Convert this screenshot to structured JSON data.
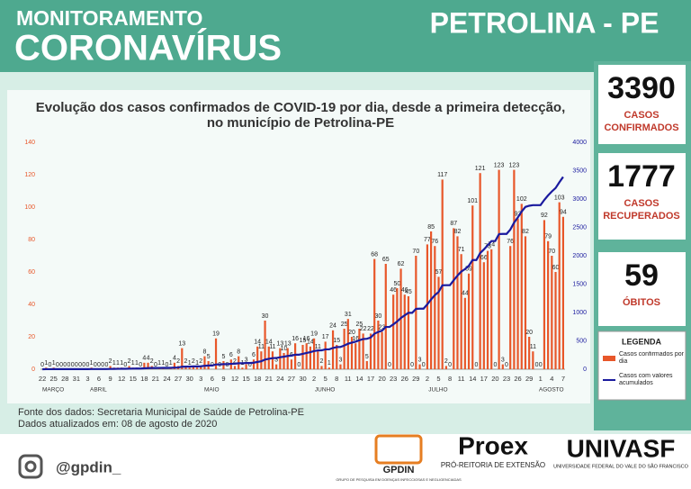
{
  "header": {
    "title_top": "MONITORAMENTO",
    "title_main": "CORONAVÍRUS",
    "location": "PETROLINA - PE"
  },
  "stats": [
    {
      "value": 3390,
      "label": [
        "CASOS",
        "CONFIRMADOS"
      ]
    },
    {
      "value": 1777,
      "label": [
        "CASOS",
        "RECUPERADOS"
      ]
    },
    {
      "value": 59,
      "label": [
        "ÓBITOS"
      ]
    }
  ],
  "chart_data": {
    "type": "bar",
    "title": [
      "Evolução dos casos confirmados de COVID-19 por dia, desde a primeira detecção,",
      "no município de Petrolina-PE"
    ],
    "categories": [
      "22",
      null,
      null,
      "25",
      null,
      null,
      "28",
      null,
      null,
      "31",
      null,
      null,
      "3",
      null,
      null,
      "6",
      null,
      null,
      "9",
      null,
      null,
      "12",
      null,
      null,
      "15",
      null,
      null,
      "18",
      null,
      null,
      "21",
      null,
      null,
      "24",
      null,
      null,
      "27",
      null,
      null,
      "30",
      null,
      null,
      "3",
      null,
      null,
      "6",
      null,
      null,
      "9",
      null,
      null,
      "12",
      null,
      null,
      "15",
      null,
      null,
      "18",
      null,
      null,
      "21",
      null,
      null,
      "24",
      null,
      null,
      "27",
      null,
      null,
      "30",
      null,
      null,
      "2",
      null,
      null,
      "5",
      null,
      null,
      "8",
      null,
      null,
      "11",
      null,
      null,
      "14",
      null,
      null,
      "17",
      null,
      null,
      "20",
      null,
      null,
      "23",
      null,
      null,
      "26",
      null,
      null,
      "29",
      null,
      null,
      "2",
      null,
      null,
      "5",
      null,
      null,
      "8",
      null,
      null,
      "11",
      null,
      null,
      "14",
      null,
      null,
      "17",
      null,
      null,
      "20",
      null,
      null,
      "23",
      null,
      null,
      "26",
      null,
      null,
      "29",
      null,
      null,
      "1",
      null,
      null,
      "4",
      null,
      null,
      "7"
    ],
    "month_labels": [
      "MARÇO",
      "ABRIL",
      "MAIO",
      "JUNHO",
      "JULHO",
      "AGOSTO"
    ],
    "series": [
      {
        "name": "Casos confirmados por dia",
        "color": "#e8572a",
        "values": [
          0,
          1,
          0,
          1,
          0,
          0,
          0,
          0,
          0,
          0,
          0,
          0,
          0,
          1,
          0,
          0,
          0,
          0,
          2,
          1,
          1,
          1,
          0,
          2,
          1,
          1,
          0,
          4,
          4,
          2,
          0,
          1,
          1,
          0,
          1,
          4,
          2,
          13,
          2,
          1,
          2,
          1,
          2,
          8,
          5,
          0,
          19,
          0,
          5,
          0,
          6,
          2,
          8,
          1,
          3,
          0,
          6,
          14,
          11,
          30,
          14,
          11,
          3,
          13,
          10,
          13,
          6,
          16,
          0,
          15,
          16,
          14,
          19,
          11,
          2,
          17,
          1,
          24,
          15,
          3,
          25,
          31,
          20,
          16,
          25,
          22,
          5,
          22,
          68,
          30,
          23,
          65,
          0,
          46,
          50,
          62,
          46,
          45,
          0,
          70,
          3,
          0,
          77,
          85,
          76,
          57,
          117,
          2,
          0,
          87,
          82,
          71,
          44,
          59,
          101,
          0,
          121,
          66,
          73,
          74,
          0,
          123,
          3,
          0,
          76,
          123,
          93,
          102,
          82,
          20,
          11,
          0,
          0,
          92,
          79,
          70,
          60,
          103,
          94
        ]
      },
      {
        "name": "Casos com valores acumulados",
        "color": "#1a1a9e",
        "type": "line",
        "axis": "y2",
        "values": [
          0,
          1,
          1,
          2,
          2,
          2,
          2,
          2,
          2,
          2,
          2,
          2,
          2,
          3,
          3,
          3,
          3,
          3,
          5,
          6,
          7,
          8,
          8,
          10,
          11,
          12,
          12,
          16,
          20,
          22,
          22,
          23,
          24,
          24,
          25,
          29,
          31,
          44,
          46,
          47,
          49,
          50,
          52,
          60,
          65,
          65,
          84,
          84,
          89,
          89,
          95,
          97,
          105,
          106,
          109,
          109,
          115,
          129,
          140,
          170,
          184,
          195,
          198,
          211,
          221,
          234,
          240,
          256,
          256,
          271,
          287,
          301,
          320,
          331,
          333,
          350,
          351,
          375,
          390,
          393,
          418,
          449,
          469,
          485,
          510,
          532,
          537,
          559,
          627,
          657,
          680,
          745,
          745,
          791,
          841,
          903,
          949,
          994,
          994,
          1064,
          1067,
          1067,
          1144,
          1229,
          1305,
          1362,
          1479,
          1481,
          1481,
          1568,
          1650,
          1721,
          1765,
          1824,
          1925,
          1925,
          2046,
          2112,
          2185,
          2259,
          2259,
          2382,
          2385,
          2385,
          2461,
          2584,
          2677,
          2779,
          2861,
          2881,
          2892,
          2892,
          2892,
          2984,
          3063,
          3133,
          3193,
          3296,
          3390
        ]
      }
    ],
    "ylim": [
      0,
      140
    ],
    "yticks": [
      0,
      20,
      40,
      60,
      80,
      100,
      120,
      140
    ],
    "y2lim": [
      0,
      4000
    ],
    "y2ticks": [
      0,
      500,
      1000,
      1500,
      2000,
      2500,
      3000,
      3500,
      4000
    ],
    "legend_title": "LEGENDA"
  },
  "source": [
    "Fonte dos dados: Secretaria Municipal de Saúde de Petrolina-PE",
    "Dados atualizados em: 08 de agosto de 2020"
  ],
  "footer": {
    "handle": "@gpdin_",
    "gpdin": "GPDIN",
    "gpdin_sub": "GRUPO DE PESQUISA EM DOENÇAS INFECCIOSAS E NEGLIGENCIADAS",
    "proex": "Proex",
    "proex_sub": "PRÓ-REITORIA DE EXTENSÃO",
    "univasf": "UNIVASF",
    "univasf_sub": "UNIVERSIDADE FEDERAL DO VALE DO SÃO FRANCISCO"
  }
}
